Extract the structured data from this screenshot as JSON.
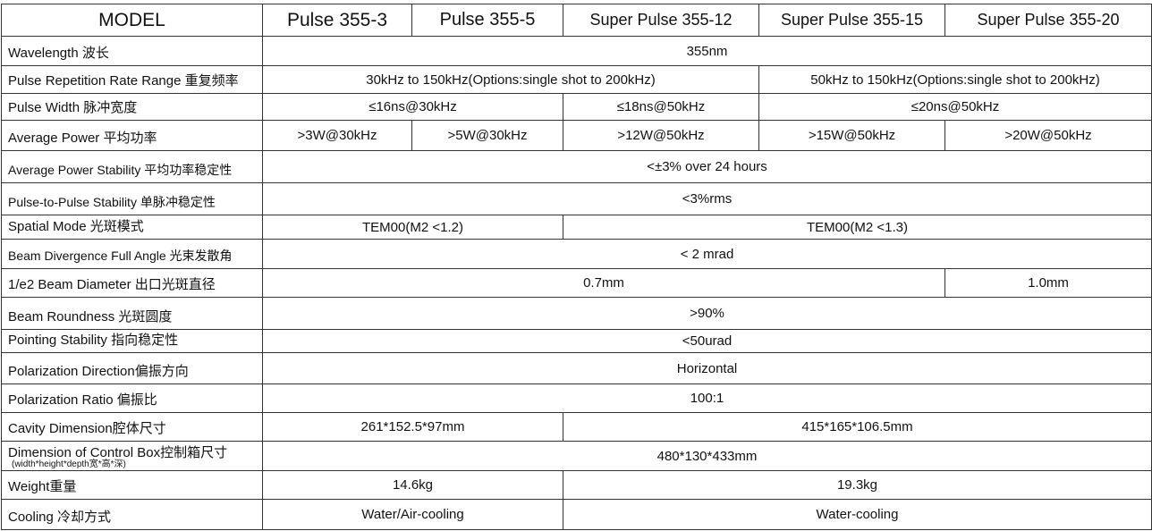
{
  "header": {
    "model_label": "MODEL",
    "models": [
      "Pulse 355-3",
      "Pulse 355-5",
      "Super Pulse 355-12",
      "Super Pulse 355-15",
      "Super Pulse 355-20"
    ]
  },
  "rows": [
    {
      "label": "Wavelength 波长",
      "cells": [
        {
          "text": "355nm",
          "span": 5
        }
      ]
    },
    {
      "label": "Pulse Repetition Rate Range 重复频率",
      "cells": [
        {
          "text": "30kHz to 150kHz(Options:single shot to 200kHz)",
          "span": 3
        },
        {
          "text": "50kHz to 150kHz(Options:single shot to 200kHz)",
          "span": 2
        }
      ]
    },
    {
      "label": "Pulse Width 脉冲宽度",
      "cells": [
        {
          "text": "≤16ns@30kHz",
          "span": 2
        },
        {
          "text": "≤18ns@50kHz",
          "span": 1
        },
        {
          "text": "≤20ns@50kHz",
          "span": 2
        }
      ]
    },
    {
      "label": "Average Power 平均功率",
      "cells": [
        {
          "text": ">3W@30kHz",
          "span": 1
        },
        {
          "text": ">5W@30kHz",
          "span": 1
        },
        {
          "text": ">12W@50kHz",
          "span": 1
        },
        {
          "text": ">15W@50kHz",
          "span": 1
        },
        {
          "text": ">20W@50kHz",
          "span": 1
        }
      ]
    },
    {
      "label": "Average Power Stability 平均功率稳定性",
      "small": true,
      "cells": [
        {
          "text": "<±3% over 24 hours",
          "span": 5
        }
      ]
    },
    {
      "label": "Pulse-to-Pulse Stability 单脉冲稳定性",
      "small": true,
      "cells": [
        {
          "text": "<3%rms",
          "span": 5
        }
      ]
    },
    {
      "label": "Spatial Mode 光斑模式",
      "cells": [
        {
          "text": "TEM00(M2 <1.2)",
          "span": 2
        },
        {
          "text": "TEM00(M2 <1.3)",
          "span": 3
        }
      ]
    },
    {
      "label": "Beam Divergence Full Angle 光束发散角",
      "small": true,
      "cells": [
        {
          "text": "< 2 mrad",
          "span": 5
        }
      ]
    },
    {
      "label": "1/e2 Beam Diameter 出口光斑直径",
      "cells": [
        {
          "text": "0.7mm",
          "span": 4
        },
        {
          "text": "1.0mm",
          "span": 1
        }
      ]
    },
    {
      "label": "Beam Roundness 光斑圆度",
      "cells": [
        {
          "text": ">90%",
          "span": 5
        }
      ]
    },
    {
      "label": "Pointing Stability 指向稳定性",
      "cells": [
        {
          "text": "<50urad",
          "span": 5
        }
      ]
    },
    {
      "label": "Polarization Direction偏振方向",
      "cells": [
        {
          "text": "Horizontal",
          "span": 5
        }
      ]
    },
    {
      "label": "Polarization Ratio 偏振比",
      "cells": [
        {
          "text": "100:1",
          "span": 5
        }
      ]
    },
    {
      "label": "Cavity Dimension腔体尺寸",
      "cells": [
        {
          "text": "261*152.5*97mm",
          "span": 2
        },
        {
          "text": "415*165*106.5mm",
          "span": 3
        }
      ]
    },
    {
      "label": "Dimension of Control Box控制箱尺寸",
      "sublabel": "(width*height*depth宽*高*深)",
      "cells": [
        {
          "text": "480*130*433mm",
          "span": 5
        }
      ]
    },
    {
      "label": "Weight重量",
      "cells": [
        {
          "text": "14.6kg",
          "span": 2
        },
        {
          "text": "19.3kg",
          "span": 3
        }
      ]
    },
    {
      "label": "Cooling 冷却方式",
      "cells": [
        {
          "text": "Water/Air-cooling",
          "span": 2
        },
        {
          "text": "Water-cooling",
          "span": 3
        }
      ]
    }
  ]
}
